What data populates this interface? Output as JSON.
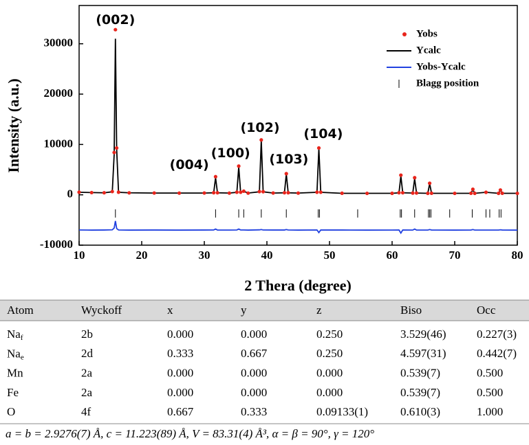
{
  "chart_data": {
    "type": "line",
    "xlabel": "2 Thera (degree)",
    "ylabel": "Intensity (a.u.)",
    "xlim": [
      10,
      80
    ],
    "xticks": [
      10,
      20,
      30,
      40,
      50,
      60,
      70,
      80
    ],
    "ylim": [
      -10000,
      37600
    ],
    "yticks": [
      -10000,
      0,
      10000,
      20000,
      30000
    ],
    "grid": false,
    "legend": "upper right",
    "x": [
      10,
      12,
      14,
      15.3,
      15.6,
      15.8,
      16.0,
      16.3,
      18,
      22,
      26,
      30,
      31.5,
      31.8,
      32.1,
      34,
      35.2,
      35.5,
      35.8,
      36.3,
      37,
      38.8,
      39.1,
      39.4,
      41,
      42.8,
      43.1,
      43.4,
      45,
      48.0,
      48.3,
      48.6,
      52,
      56,
      60,
      61.1,
      61.4,
      61.7,
      63.3,
      63.6,
      63.9,
      65.7,
      66.0,
      66.3,
      70,
      72.6,
      72.9,
      73.2,
      75.0,
      77.0,
      77.3,
      77.6,
      80
    ],
    "series": [
      {
        "name": "Yobs",
        "color": "#e8251c",
        "style": "marker",
        "values": [
          520,
          440,
          410,
          650,
          8400,
          32800,
          9300,
          520,
          390,
          360,
          340,
          360,
          420,
          3600,
          410,
          340,
          520,
          5700,
          520,
          720,
          340,
          640,
          10900,
          620,
          360,
          410,
          4200,
          420,
          340,
          520,
          9300,
          520,
          310,
          290,
          300,
          420,
          3900,
          410,
          350,
          3400,
          360,
          300,
          2300,
          310,
          290,
          310,
          1100,
          300,
          500,
          300,
          950,
          310,
          290
        ]
      },
      {
        "name": "Ycalc",
        "color": "#000000",
        "style": "line",
        "values": [
          500,
          450,
          400,
          600,
          8000,
          31000,
          9000,
          500,
          400,
          350,
          350,
          350,
          400,
          3400,
          400,
          350,
          500,
          5500,
          500,
          700,
          350,
          600,
          10800,
          600,
          350,
          400,
          4100,
          400,
          350,
          500,
          9200,
          500,
          300,
          300,
          300,
          400,
          3700,
          400,
          350,
          3200,
          350,
          300,
          2200,
          300,
          300,
          300,
          1000,
          300,
          500,
          300,
          900,
          300,
          300
        ]
      },
      {
        "name": "Yobs-Ycalc",
        "color": "#2040e0",
        "style": "line",
        "values": [
          -6980,
          -7010,
          -6990,
          -6950,
          -6600,
          -5200,
          -6700,
          -6980,
          -7010,
          -6990,
          -7010,
          -6990,
          -6980,
          -6800,
          -6990,
          -7000,
          -6980,
          -6800,
          -6980,
          -6980,
          -7010,
          -6960,
          -6900,
          -6980,
          -6990,
          -6990,
          -6900,
          -6980,
          -7010,
          -6980,
          -7500,
          -6980,
          -6990,
          -7010,
          -7000,
          -6980,
          -7600,
          -6990,
          -7000,
          -6800,
          -6990,
          -7000,
          -6900,
          -6990,
          -7010,
          -6990,
          -6900,
          -7000,
          -7000,
          -7000,
          -6950,
          -6990,
          -7010
        ]
      },
      {
        "name": "Blagg position",
        "color": "#000000",
        "style": "tick",
        "x": [
          15.8,
          31.8,
          35.5,
          36.3,
          39.1,
          43.1,
          48.2,
          48.4,
          54.5,
          61.3,
          61.5,
          63.6,
          65.8,
          66.0,
          66.2,
          69.2,
          72.8,
          75.0,
          75.6,
          77.1,
          77.4
        ],
        "values": [
          -3700,
          -3700,
          -3700,
          -3700,
          -3700,
          -3700,
          -3700,
          -3700,
          -3700,
          -3700,
          -3700,
          -3700,
          -3700,
          -3700,
          -3700,
          -3700,
          -3700,
          -3700,
          -3700,
          -3700,
          -3700
        ]
      }
    ],
    "annotations": [
      {
        "text": "(002)",
        "x": 15.8,
        "y": 34650
      },
      {
        "text": "(004)",
        "x": 27.6,
        "y": 5870
      },
      {
        "text": "(100)",
        "x": 34.2,
        "y": 8190
      },
      {
        "text": "(102)",
        "x": 38.9,
        "y": 13230
      },
      {
        "text": "(103)",
        "x": 43.5,
        "y": 6960
      },
      {
        "text": "(104)",
        "x": 49.0,
        "y": 12000
      }
    ]
  },
  "table": {
    "header": [
      "Atom",
      "Wyckoff",
      "x",
      "y",
      "z",
      "Biso",
      "Occ"
    ],
    "rows": [
      [
        {
          "text": "Na",
          "sub": "f"
        },
        "2b",
        "0.000",
        "0.000",
        "0.250",
        "3.529(46)",
        "0.227(3)"
      ],
      [
        {
          "text": "Na",
          "sub": "e"
        },
        "2d",
        "0.333",
        "0.667",
        "0.250",
        "4.597(31)",
        "0.442(7)"
      ],
      [
        "Mn",
        "2a",
        "0.000",
        "0.000",
        "0.000",
        "0.539(7)",
        "0.500"
      ],
      [
        "Fe",
        "2a",
        "0.000",
        "0.000",
        "0.000",
        "0.539(7)",
        "0.500"
      ],
      [
        "O",
        "4f",
        "0.667",
        "0.333",
        "0.09133(1)",
        "0.610(3)",
        "1.000"
      ]
    ],
    "footer": "a = b = 2.9276(7) Å, c = 11.223(89) Å, V = 83.31(4) Å³, α = β = 90°, γ = 120°"
  }
}
